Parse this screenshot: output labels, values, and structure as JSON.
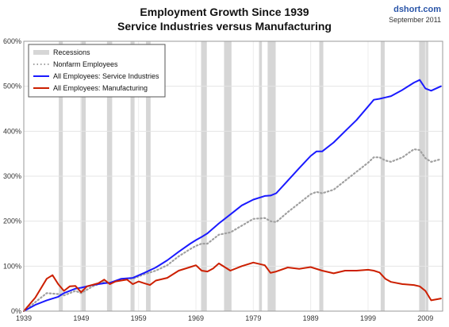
{
  "header": {
    "title_line1": "Employment Growth Since 1939",
    "title_line2": "Service Industries versus Manufacturing",
    "brand": "dshort.com",
    "date": "September 2011"
  },
  "chart_data": {
    "type": "line",
    "title": "Employment Growth Since 1939 — Service Industries versus Manufacturing",
    "xlim": [
      1939,
      2012
    ],
    "ylim": [
      0,
      600
    ],
    "y_unit": "%",
    "grid": true,
    "legend_position": "top-left",
    "x_ticks": [
      "1939",
      "1949",
      "1959",
      "1969",
      "1979",
      "1989",
      "1999",
      "2009"
    ],
    "y_ticks": [
      "0%",
      "100%",
      "200%",
      "300%",
      "400%",
      "500%",
      "600%"
    ],
    "recessions": [
      [
        1945.1,
        1945.8
      ],
      [
        1948.9,
        1949.8
      ],
      [
        1953.5,
        1954.4
      ],
      [
        1957.6,
        1958.3
      ],
      [
        1960.3,
        1961.1
      ],
      [
        1969.9,
        1970.9
      ],
      [
        1973.9,
        1975.2
      ],
      [
        1980.0,
        1980.5
      ],
      [
        1981.5,
        1982.9
      ],
      [
        1990.5,
        1991.2
      ],
      [
        2001.2,
        2001.9
      ],
      [
        2007.9,
        2009.5
      ]
    ],
    "series": [
      {
        "name": "Recessions",
        "color": "#d6d6d6",
        "style": "band"
      },
      {
        "name": "Nonfarm Employees",
        "color": "#a0a0a0",
        "style": "dotted",
        "x": [
          1939,
          1941,
          1943,
          1945,
          1946,
          1948,
          1949,
          1951,
          1953,
          1954,
          1956,
          1958,
          1960,
          1962,
          1964,
          1966,
          1968,
          1969,
          1970,
          1971,
          1973,
          1975,
          1977,
          1979,
          1981,
          1982,
          1983,
          1985,
          1987,
          1989,
          1990,
          1991,
          1993,
          1995,
          1997,
          1999,
          2000,
          2001,
          2002,
          2003,
          2005,
          2007,
          2008,
          2009,
          2010,
          2011.7
        ],
        "y": [
          0,
          20,
          40,
          38,
          35,
          45,
          40,
          55,
          65,
          62,
          72,
          72,
          82,
          90,
          102,
          122,
          138,
          145,
          150,
          150,
          170,
          175,
          190,
          205,
          207,
          200,
          198,
          220,
          240,
          260,
          265,
          262,
          270,
          290,
          310,
          330,
          342,
          342,
          335,
          332,
          342,
          360,
          358,
          340,
          332,
          338
        ]
      },
      {
        "name": "All Employees: Service Industries",
        "color": "#1a1aff",
        "style": "solid",
        "x": [
          1939,
          1941,
          1943,
          1945,
          1946,
          1948,
          1949,
          1951,
          1953,
          1954,
          1956,
          1958,
          1960,
          1962,
          1964,
          1966,
          1968,
          1969,
          1970,
          1971,
          1973,
          1975,
          1977,
          1979,
          1981,
          1982,
          1983,
          1985,
          1987,
          1989,
          1990,
          1991,
          1993,
          1995,
          1997,
          1999,
          2000,
          2001,
          2002,
          2003,
          2005,
          2007,
          2008,
          2009,
          2010,
          2011.7
        ],
        "y": [
          0,
          14,
          24,
          32,
          40,
          50,
          52,
          58,
          62,
          63,
          72,
          74,
          85,
          97,
          113,
          132,
          150,
          158,
          165,
          173,
          195,
          215,
          235,
          248,
          256,
          257,
          262,
          290,
          318,
          345,
          355,
          355,
          375,
          400,
          425,
          455,
          470,
          472,
          475,
          478,
          492,
          508,
          514,
          495,
          490,
          500
        ]
      },
      {
        "name": "All Employees: Manufacturing",
        "color": "#cc1f00",
        "style": "solid",
        "x": [
          1939,
          1941,
          1943,
          1944,
          1945,
          1946,
          1947,
          1948,
          1949,
          1950,
          1952,
          1953,
          1954,
          1955,
          1957,
          1958,
          1959,
          1960,
          1961,
          1962,
          1964,
          1966,
          1968,
          1969,
          1970,
          1971,
          1972,
          1973,
          1975,
          1977,
          1979,
          1981,
          1982,
          1983,
          1985,
          1987,
          1989,
          1991,
          1993,
          1995,
          1997,
          1999,
          2000,
          2001,
          2002,
          2003,
          2005,
          2007,
          2008,
          2009,
          2010,
          2011.7
        ],
        "y": [
          0,
          30,
          72,
          80,
          60,
          45,
          55,
          56,
          42,
          55,
          62,
          70,
          60,
          66,
          70,
          60,
          66,
          62,
          58,
          68,
          74,
          90,
          98,
          102,
          90,
          88,
          95,
          106,
          90,
          100,
          108,
          102,
          85,
          88,
          97,
          94,
          98,
          90,
          84,
          90,
          90,
          92,
          90,
          86,
          72,
          65,
          60,
          58,
          55,
          45,
          24,
          28
        ]
      }
    ]
  }
}
